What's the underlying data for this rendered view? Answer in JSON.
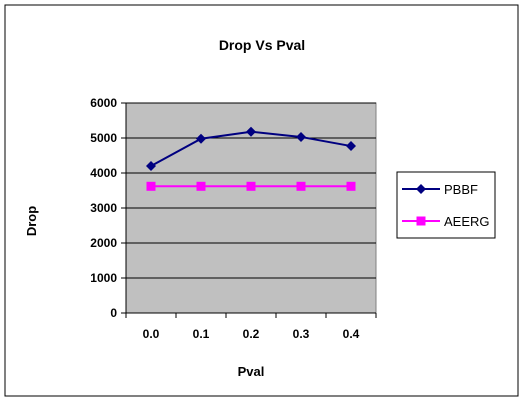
{
  "chart_data": {
    "type": "line",
    "title": "Drop Vs Pval",
    "xlabel": "Pval",
    "ylabel": "Drop",
    "categories": [
      "0.0",
      "0.1",
      "0.2",
      "0.3",
      "0.4"
    ],
    "ylim": [
      0,
      6000
    ],
    "yticks": [
      0,
      1000,
      2000,
      3000,
      4000,
      5000,
      6000
    ],
    "grid": true,
    "legend": "right",
    "plot_background": "#c0c0c0",
    "series": [
      {
        "name": "PBBF",
        "values": [
          4200,
          4980,
          5180,
          5030,
          4770
        ],
        "color": "#000080",
        "marker": "diamond"
      },
      {
        "name": "AEERG",
        "values": [
          3620,
          3620,
          3620,
          3620,
          3620
        ],
        "color": "#ff00ff",
        "marker": "square"
      }
    ]
  }
}
